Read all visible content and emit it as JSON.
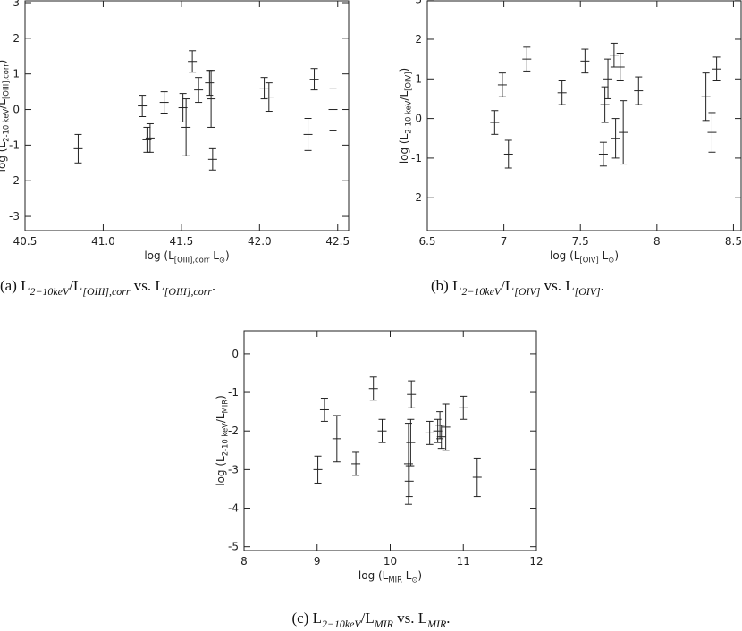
{
  "chart_data": [
    {
      "type": "errorbar",
      "ylabel": [
        "log (L",
        "2-10 keV",
        "/L",
        "[OIII],corr",
        ")"
      ],
      "xlabel": [
        "log (L",
        "[OIII],corr",
        " L",
        "⊙",
        ")"
      ],
      "caption": [
        "(a) L",
        "2−10keV",
        "/L",
        "[OIII],corr",
        " vs. L",
        "[OIII],corr",
        "."
      ],
      "xlim": [
        40.5,
        42.57
      ],
      "xticks": [
        {
          "value": 40.5,
          "label": "40.5"
        },
        {
          "value": 41.0,
          "label": "41.0"
        },
        {
          "value": 41.5,
          "label": "41.5"
        },
        {
          "value": 42.0,
          "label": "42.0"
        },
        {
          "value": 42.5,
          "label": "42.5"
        }
      ],
      "ylim": [
        -3.4,
        3.05
      ],
      "yticks": [
        -3,
        -2,
        -1,
        0,
        1,
        2,
        3
      ],
      "x": [
        40.84,
        41.25,
        41.28,
        41.3,
        41.39,
        41.51,
        41.53,
        41.57,
        41.61,
        41.68,
        41.69,
        41.7,
        42.03,
        42.06,
        42.31,
        42.35,
        42.47
      ],
      "values": [
        -1.1,
        0.1,
        -0.85,
        -0.8,
        0.2,
        0.05,
        -0.5,
        1.35,
        0.55,
        0.75,
        0.3,
        -1.4,
        0.6,
        0.35,
        -0.7,
        0.85,
        0
      ],
      "errors": [
        0.4,
        0.3,
        0.35,
        0.4,
        0.3,
        0.4,
        0.8,
        0.3,
        0.35,
        0.35,
        0.8,
        0.3,
        0.3,
        0.4,
        0.45,
        0.3,
        0.6
      ],
      "color": "#222222"
    },
    {
      "type": "errorbar",
      "ylabel": [
        "log (L",
        "2-10 keV",
        "/L",
        "[OIV]",
        ")"
      ],
      "xlabel": [
        "log (L",
        "[OIV]",
        " L",
        "⊙",
        ")"
      ],
      "caption": [
        "(b) L",
        "2−10keV",
        "/L",
        "[OIV]",
        " vs. L",
        "[OIV]",
        "."
      ],
      "xlim": [
        6.5,
        8.55
      ],
      "xticks": [
        6.5,
        7.0,
        7.5,
        8.0,
        8.5
      ],
      "ylim": [
        -2.83,
        2.97
      ],
      "yticks": [
        -2,
        -1,
        0,
        1,
        2,
        3
      ],
      "x": [
        6.94,
        6.99,
        7.03,
        7.15,
        7.38,
        7.53,
        7.65,
        7.66,
        7.68,
        7.72,
        7.73,
        7.76,
        7.78,
        7.88,
        8.32,
        8.36,
        8.39
      ],
      "values": [
        -0.1,
        0.85,
        -0.9,
        1.5,
        0.65,
        1.45,
        -0.9,
        0.35,
        1.0,
        1.6,
        -0.5,
        1.3,
        -0.35,
        0.7,
        0.55,
        -0.35,
        1.25
      ],
      "errors": [
        0.3,
        0.3,
        0.35,
        0.3,
        0.3,
        0.3,
        0.3,
        0.45,
        0.5,
        0.3,
        0.5,
        0.35,
        0.8,
        0.35,
        0.6,
        0.5,
        0.3
      ],
      "color": "#222222"
    },
    {
      "type": "errorbar",
      "ylabel": [
        "log (L",
        "2-10 keV",
        "/L",
        "MIR",
        ")"
      ],
      "xlabel": [
        "log (L",
        "MIR",
        " L",
        "⊙",
        ")"
      ],
      "caption": [
        "(c) L",
        "2−10keV",
        "/L",
        "MIR",
        " vs. L",
        "MIR",
        "."
      ],
      "xlim": [
        8,
        12
      ],
      "xticks": [
        8,
        9,
        10,
        11,
        12
      ],
      "ylim": [
        -5.1,
        0.6
      ],
      "yticks": [
        -5,
        -4,
        -3,
        -2,
        -1,
        0
      ],
      "x": [
        9.01,
        9.1,
        9.27,
        9.53,
        9.77,
        9.89,
        10.25,
        10.26,
        10.29,
        10.28,
        10.54,
        10.65,
        10.68,
        10.7,
        10.76,
        11.0,
        11.19
      ],
      "values": [
        -3.0,
        -1.45,
        -2.2,
        -2.85,
        -0.9,
        -2.0,
        -2.85,
        -3.3,
        -1.05,
        -2.3,
        -2.05,
        -2.0,
        -1.85,
        -2.15,
        -1.9,
        -1.4,
        -3.2
      ],
      "errors": [
        0.35,
        0.3,
        0.6,
        0.3,
        0.3,
        0.3,
        1.05,
        0.4,
        0.35,
        0.6,
        0.3,
        0.3,
        0.35,
        0.3,
        0.6,
        0.3,
        0.5
      ],
      "color": "#222222"
    }
  ]
}
